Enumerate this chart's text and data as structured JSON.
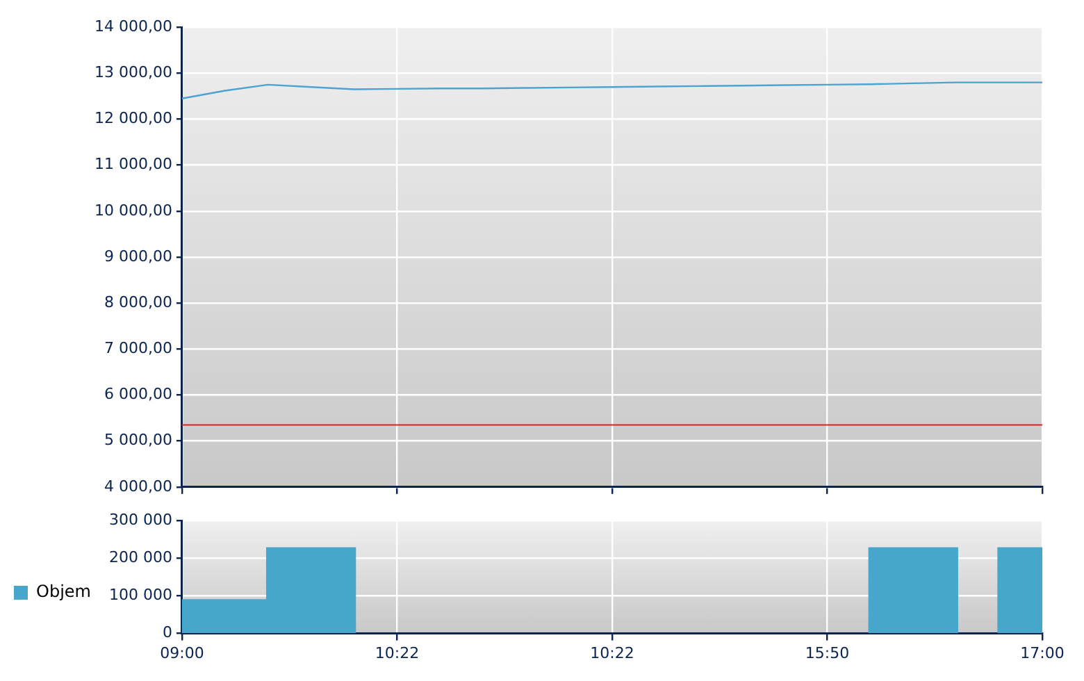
{
  "chart_data": [
    {
      "type": "line",
      "categories": [
        null,
        null,
        null,
        null,
        null,
        null,
        null,
        null,
        null,
        null,
        null,
        null,
        null,
        null,
        null,
        null,
        null,
        null,
        null,
        null,
        null
      ],
      "ylim": [
        4000,
        14000
      ],
      "yticks": [
        {
          "value": 4000,
          "label": "4 000,00"
        },
        {
          "value": 5000,
          "label": "5 000,00"
        },
        {
          "value": 6000,
          "label": "6 000,00"
        },
        {
          "value": 7000,
          "label": "7 000,00"
        },
        {
          "value": 8000,
          "label": "8 000,00"
        },
        {
          "value": 9000,
          "label": "9 000,00"
        },
        {
          "value": 10000,
          "label": "10 000,00"
        },
        {
          "value": 11000,
          "label": "11 000,00"
        },
        {
          "value": 12000,
          "label": "12 000,00"
        },
        {
          "value": 13000,
          "label": "13 000,00"
        },
        {
          "value": 14000,
          "label": "14 000,00"
        }
      ],
      "series": [
        {
          "color": "#4aa3d0",
          "values": [
            12450,
            12620,
            12750,
            12700,
            12650,
            12660,
            12670,
            12670,
            12680,
            12690,
            12700,
            12710,
            12720,
            12730,
            12740,
            12750,
            12760,
            12780,
            12800,
            12800,
            12800
          ]
        }
      ],
      "ref_lines": [
        {
          "axis": "y",
          "value": 5350,
          "color": "#e02020"
        }
      ],
      "grid": true,
      "legend": false,
      "marker": "none",
      "tick_labels": "y"
    },
    {
      "type": "bar",
      "categories": [
        "09:00",
        null,
        null,
        null,
        null,
        "10:22",
        null,
        null,
        null,
        null,
        "10:22",
        null,
        null,
        null,
        null,
        "15:50",
        null,
        null,
        null,
        null,
        "17:00"
      ],
      "ylim": [
        0,
        300000
      ],
      "yticks": [
        {
          "value": 0,
          "label": "0"
        },
        {
          "value": 100000,
          "label": "100 000"
        },
        {
          "value": 200000,
          "label": "200 000"
        },
        {
          "value": 300000,
          "label": "300 000"
        }
      ],
      "series": [
        {
          "name": "Objem",
          "color": "#46a6cc",
          "values": [
            null,
            90000,
            null,
            228000,
            null,
            null,
            null,
            null,
            null,
            null,
            null,
            null,
            null,
            null,
            null,
            null,
            null,
            228000,
            null,
            null,
            228000
          ]
        }
      ],
      "grid": true,
      "legend": "left"
    }
  ]
}
